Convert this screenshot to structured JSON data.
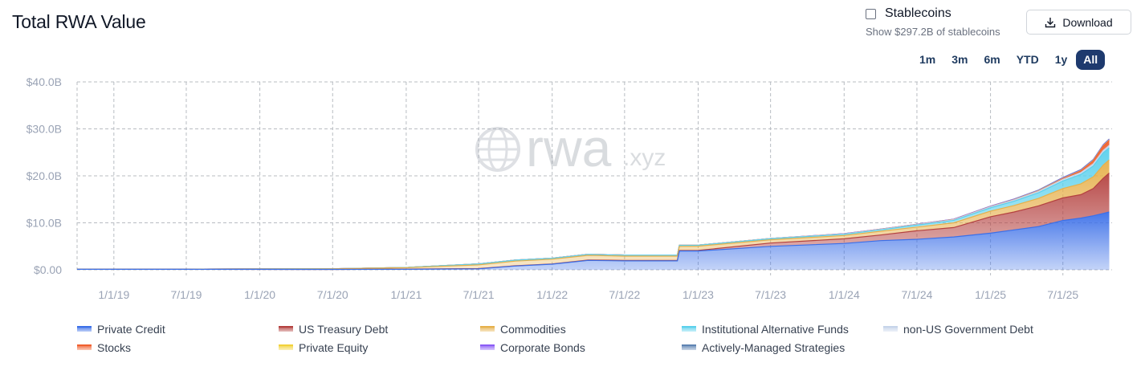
{
  "header": {
    "title": "Total RWA Value",
    "stablecoins_label": "Stablecoins",
    "stablecoins_sub": "Show $297.2B of stablecoins",
    "download_label": "Download"
  },
  "ranges": [
    {
      "label": "1m",
      "active": false
    },
    {
      "label": "3m",
      "active": false
    },
    {
      "label": "6m",
      "active": false
    },
    {
      "label": "YTD",
      "active": false
    },
    {
      "label": "1y",
      "active": false
    },
    {
      "label": "All",
      "active": true
    }
  ],
  "watermark": {
    "main": "rwa",
    "suffix": ".xyz"
  },
  "chart_data": {
    "type": "area",
    "stacked": true,
    "xlim": [
      "2018-10-01",
      "2025-11-01"
    ],
    "ylim": [
      0,
      40
    ],
    "y_unit": "B USD",
    "y_ticks": [
      "$0.00",
      "$10.0B",
      "$20.0B",
      "$30.0B",
      "$40.0B"
    ],
    "x_ticks": [
      "1/1/19",
      "7/1/19",
      "1/1/20",
      "7/1/20",
      "1/1/21",
      "7/1/21",
      "1/1/22",
      "7/1/22",
      "1/1/23",
      "7/1/23",
      "1/1/24",
      "7/1/24",
      "1/1/25",
      "7/1/25"
    ],
    "grid": true,
    "x": [
      "2018-10-01",
      "2019-07-01",
      "2020-07-01",
      "2021-01-01",
      "2021-07-01",
      "2021-10-01",
      "2022-01-01",
      "2022-04-01",
      "2022-07-01",
      "2022-11-10",
      "2022-11-15",
      "2023-01-01",
      "2023-07-01",
      "2024-01-01",
      "2024-04-01",
      "2024-07-01",
      "2024-10-01",
      "2025-01-01",
      "2025-03-01",
      "2025-05-01",
      "2025-07-01",
      "2025-08-15",
      "2025-09-15",
      "2025-10-10",
      "2025-10-25"
    ],
    "series": [
      {
        "name": "Private Credit",
        "color": "#3b6fe8",
        "values": [
          0.1,
          0.1,
          0.08,
          0.1,
          0.2,
          0.8,
          1.2,
          2.0,
          1.9,
          1.9,
          4.0,
          4.0,
          5.0,
          5.6,
          6.2,
          6.5,
          7.0,
          7.8,
          8.5,
          9.2,
          10.5,
          11.0,
          11.5,
          12.0,
          12.3
        ]
      },
      {
        "name": "US Treasury Debt",
        "color": "#b4413f",
        "values": [
          0,
          0,
          0,
          0.05,
          0.05,
          0.05,
          0.05,
          0.08,
          0.1,
          0.1,
          0.1,
          0.12,
          0.7,
          1.0,
          1.2,
          1.8,
          2.0,
          3.5,
          3.8,
          4.4,
          4.8,
          5.0,
          5.8,
          7.5,
          8.3
        ]
      },
      {
        "name": "Commodities",
        "color": "#e6b04a",
        "values": [
          0,
          0,
          0.1,
          0.3,
          0.8,
          1.0,
          1.0,
          1.0,
          0.9,
          0.9,
          0.9,
          0.9,
          0.7,
          0.7,
          0.8,
          0.8,
          1.0,
          1.2,
          1.4,
          1.6,
          2.0,
          2.3,
          2.5,
          2.8,
          2.8
        ]
      },
      {
        "name": "Institutional Alternative Funds",
        "color": "#5ad0ec",
        "values": [
          0.05,
          0.05,
          0.05,
          0.05,
          0.2,
          0.2,
          0.2,
          0.2,
          0.2,
          0.2,
          0.2,
          0.2,
          0.2,
          0.25,
          0.3,
          0.4,
          0.5,
          0.7,
          0.9,
          1.2,
          1.6,
          2.0,
          2.3,
          2.6,
          2.6
        ]
      },
      {
        "name": "non-US Government Debt",
        "color": "#c6d4ea",
        "values": [
          0,
          0,
          0,
          0,
          0.02,
          0.03,
          0.03,
          0.04,
          0.05,
          0.05,
          0.05,
          0.05,
          0.06,
          0.07,
          0.08,
          0.1,
          0.15,
          0.2,
          0.25,
          0.3,
          0.35,
          0.4,
          0.45,
          0.5,
          0.5
        ]
      },
      {
        "name": "Stocks",
        "color": "#f0602f",
        "values": [
          0,
          0,
          0,
          0,
          0,
          0,
          0,
          0,
          0,
          0,
          0,
          0,
          0,
          0,
          0,
          0,
          0,
          0,
          0,
          0.02,
          0.1,
          0.3,
          0.6,
          0.9,
          1.0
        ]
      },
      {
        "name": "Private Equity",
        "color": "#f2d23a",
        "values": [
          0,
          0,
          0,
          0,
          0,
          0,
          0,
          0,
          0,
          0,
          0,
          0,
          0,
          0.02,
          0.03,
          0.04,
          0.05,
          0.06,
          0.07,
          0.08,
          0.09,
          0.1,
          0.1,
          0.11,
          0.11
        ]
      },
      {
        "name": "Corporate Bonds",
        "color": "#8b5cf6",
        "values": [
          0,
          0,
          0,
          0,
          0,
          0,
          0,
          0,
          0,
          0,
          0,
          0,
          0,
          0.05,
          0.05,
          0.06,
          0.07,
          0.08,
          0.1,
          0.11,
          0.12,
          0.13,
          0.13,
          0.14,
          0.14
        ]
      },
      {
        "name": "Actively-Managed Strategies",
        "color": "#5f84b3",
        "values": [
          0,
          0,
          0,
          0,
          0,
          0,
          0,
          0,
          0,
          0,
          0,
          0,
          0,
          0,
          0,
          0,
          0,
          0.02,
          0.05,
          0.06,
          0.08,
          0.1,
          0.1,
          0.1,
          0.1
        ]
      }
    ]
  }
}
